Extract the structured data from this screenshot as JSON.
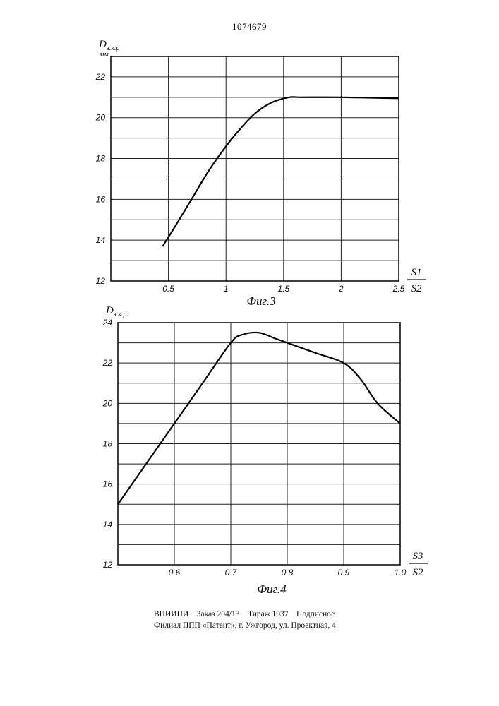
{
  "header": {
    "patent_number": "1074679"
  },
  "chart_data": [
    {
      "type": "line",
      "caption": "Фиг.3",
      "ylabel_main": "D",
      "ylabel_sub": "з.к.р",
      "yunit": "мм",
      "xlabel_num": "S1",
      "xlabel_den": "S2",
      "ylim": [
        12,
        23
      ],
      "xlim": [
        0,
        2.5
      ],
      "x_ticks": [
        "0.5",
        "1",
        "1.5",
        "2",
        "2.5"
      ],
      "x_tick_values": [
        0.5,
        1,
        1.5,
        2,
        2.5
      ],
      "y_ticks": [
        "12",
        "14",
        "16",
        "18",
        "20",
        "22"
      ],
      "y_tick_values": [
        12,
        14,
        16,
        18,
        20,
        22
      ],
      "grid": true,
      "series": [
        {
          "x": [
            0.45,
            0.55,
            0.7,
            0.85,
            1.0,
            1.1,
            1.25,
            1.4,
            1.55,
            1.65,
            2.0,
            2.5
          ],
          "y": [
            13.7,
            14.6,
            16.0,
            17.4,
            18.6,
            19.3,
            20.2,
            20.75,
            21.0,
            21.0,
            21.0,
            20.95
          ]
        }
      ]
    },
    {
      "type": "line",
      "caption": "Фиг.4",
      "ylabel_main": "D",
      "ylabel_sub": "з.к.р.",
      "xlabel_num": "S3",
      "xlabel_den": "S2",
      "ylim": [
        12,
        24
      ],
      "xlim": [
        0.5,
        1.0
      ],
      "x_ticks": [
        "0.6",
        "0.7",
        "0.8",
        "0.9",
        "1.0"
      ],
      "x_tick_values": [
        0.6,
        0.7,
        0.8,
        0.9,
        1.0
      ],
      "y_ticks": [
        "12",
        "14",
        "16",
        "18",
        "20",
        "22",
        "24"
      ],
      "y_tick_values": [
        12,
        14,
        16,
        18,
        20,
        22,
        24
      ],
      "grid": true,
      "series": [
        {
          "x": [
            0.5,
            0.55,
            0.6,
            0.65,
            0.7,
            0.72,
            0.75,
            0.78,
            0.8,
            0.85,
            0.9,
            0.93,
            0.96,
            1.0
          ],
          "y": [
            15.0,
            17.0,
            19.0,
            21.0,
            23.0,
            23.4,
            23.5,
            23.2,
            23.0,
            22.5,
            22.0,
            21.2,
            20.0,
            19.0
          ]
        }
      ]
    }
  ],
  "footer": {
    "line1": [
      "ВНИИПИ",
      "Заказ 204/13",
      "Тираж 1037",
      "Подписное"
    ],
    "line2": "Филиал ППП «Патент», г. Ужгород, ул. Проектная, 4"
  }
}
